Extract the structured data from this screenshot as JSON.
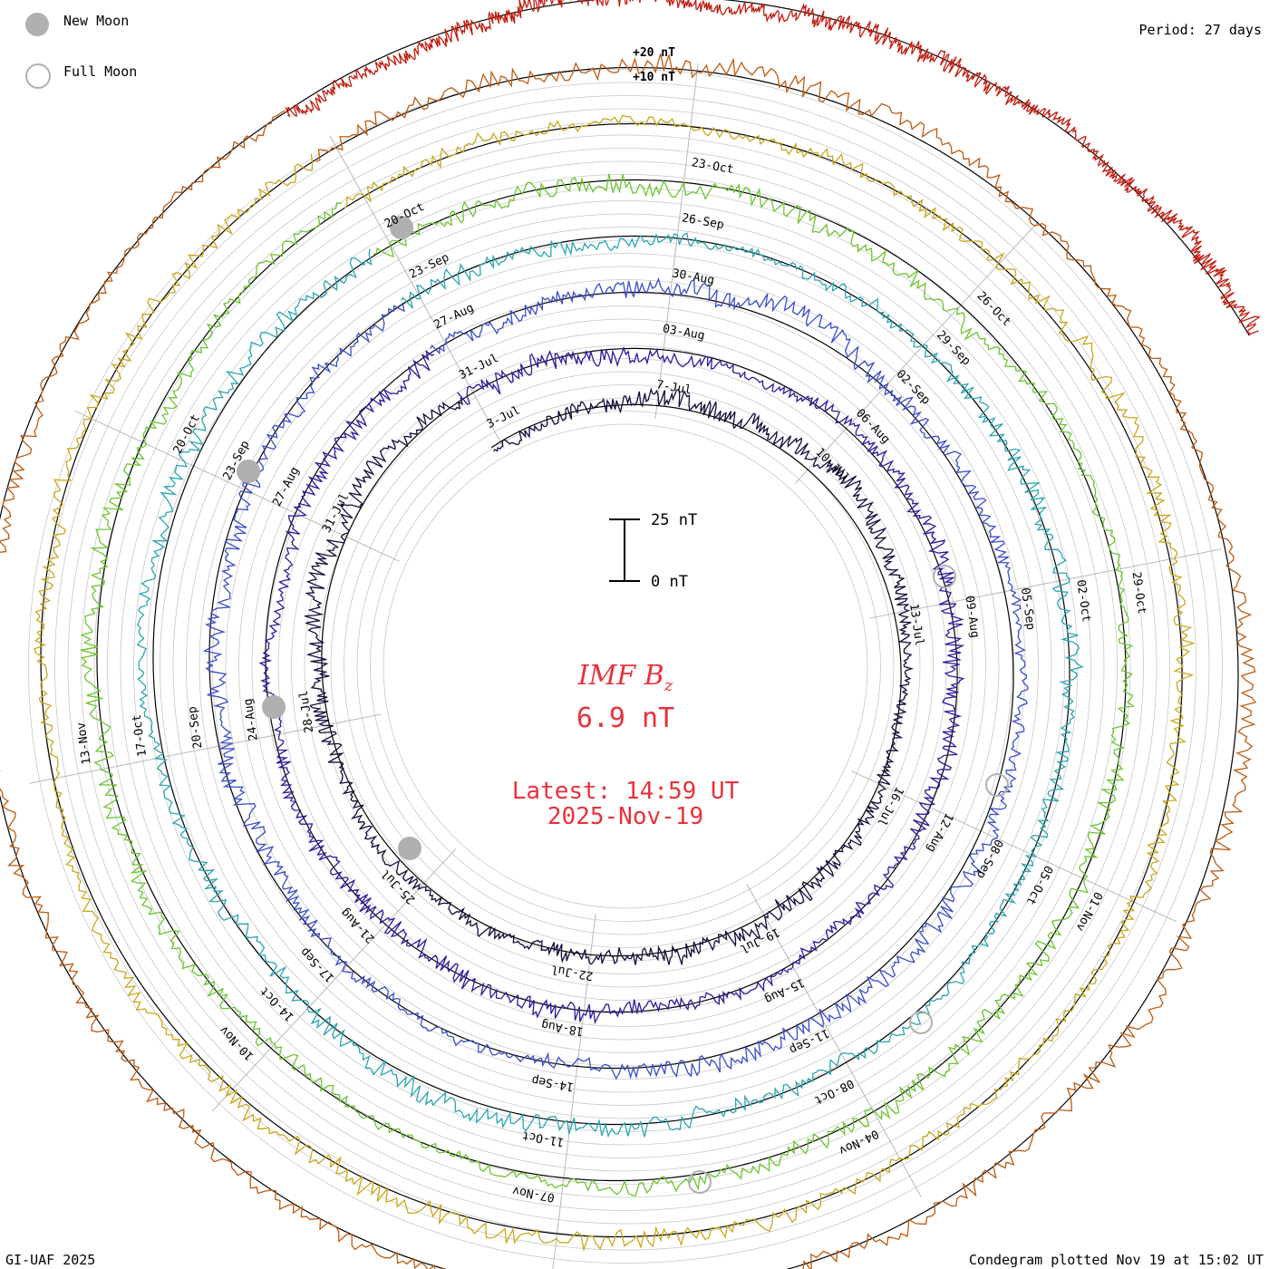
{
  "legend": {
    "new_moon": {
      "label": "New Moon",
      "color": "#b0b0b0"
    },
    "full_moon": {
      "label": "Full Moon",
      "color": "#b0b0b0"
    }
  },
  "header": {
    "period": "Period: 27 days"
  },
  "footer": {
    "credit": "GI-UAF 2025",
    "plotted": "Condegram plotted Nov 19 at 15:02 UT"
  },
  "center": {
    "title_main": "IMF B",
    "title_sub": "z",
    "value": "6.9 nT",
    "latest": "Latest: 14:59 UT",
    "date": "2025-Nov-19",
    "color": "#e8323c"
  },
  "scale_bar": {
    "top_label": "25 nT",
    "bottom_label": "0 nT"
  },
  "chart_data": {
    "type": "line",
    "layout": "spiral-condegram",
    "title": "IMF Bz",
    "units": "nT",
    "period_days": 27,
    "amplitude_labels": [
      "+20 nT",
      "+10 nT"
    ],
    "scale_bar_nT": [
      0,
      25
    ],
    "latest_value_nT": 6.9,
    "latest_time": "2025-Nov-19 14:59 UT",
    "rotations": [
      {
        "index": 1,
        "color": "#150a3a",
        "ticks": [
          "3-Jul",
          "7-Jul",
          "10-Jul",
          "13-Jul",
          "16-Jul",
          "19-Jul",
          "22-Jul",
          "25-Jul",
          "28-Jul",
          "31-Jul"
        ]
      },
      {
        "index": 2,
        "color": "#2a1a9c",
        "ticks": [
          "31-Jul",
          "03-Aug",
          "06-Aug",
          "09-Aug",
          "12-Aug",
          "15-Aug",
          "18-Aug",
          "21-Aug",
          "24-Aug",
          "27-Aug"
        ]
      },
      {
        "index": 3,
        "color": "#3a4cc8",
        "ticks": [
          "27-Aug",
          "30-Aug",
          "02-Sep",
          "05-Sep",
          "08-Sep",
          "11-Sep",
          "14-Sep",
          "17-Sep",
          "20-Sep",
          "23-Sep"
        ]
      },
      {
        "index": 4,
        "color": "#2aa6b0",
        "ticks": [
          "23-Sep",
          "26-Sep",
          "29-Sep",
          "02-Oct",
          "05-Oct",
          "08-Oct",
          "11-Oct",
          "14-Oct",
          "17-Oct",
          "20-Oct"
        ]
      },
      {
        "index": 5,
        "color": "#6cc430",
        "ticks": [
          "20-Oct",
          "23-Oct",
          "26-Oct",
          "29-Oct",
          "01-Nov",
          "04-Nov",
          "07-Nov",
          "10-Nov",
          "13-Nov"
        ]
      },
      {
        "index": 6,
        "color": "#c8a81c",
        "ticks": []
      },
      {
        "index": 7,
        "color": "#c05a10",
        "ticks": []
      },
      {
        "index": 8,
        "color": "#c01c10",
        "ticks": []
      }
    ],
    "new_moons": [
      "2025-Jul-24",
      "2025-Aug-23",
      "2025-Sep-21",
      "2025-Oct-21"
    ],
    "full_moons": [
      "2025-Aug-09",
      "2025-Sep-07",
      "2025-Oct-07",
      "2025-Nov-05"
    ]
  }
}
